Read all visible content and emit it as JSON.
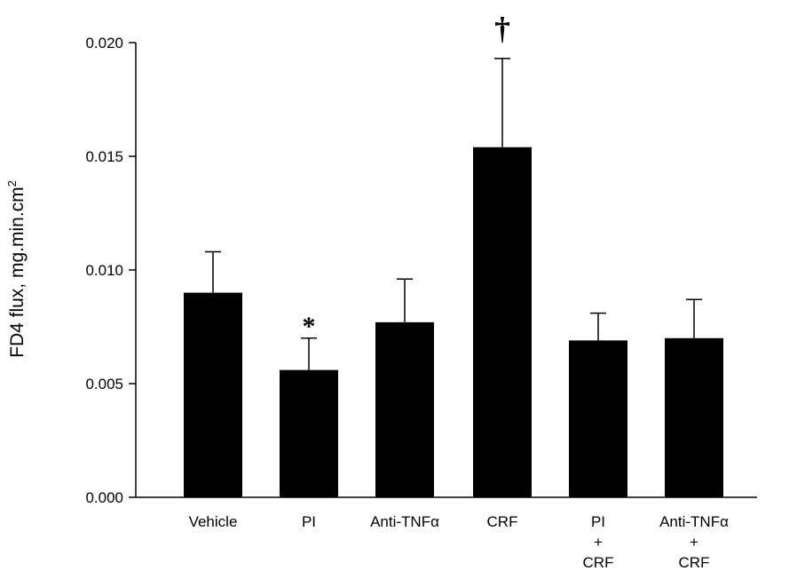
{
  "chart_data": {
    "type": "bar",
    "ylabel": "FD4 flux, mg.min.cm",
    "ylabel_sup": "2",
    "ylim": [
      0,
      0.02
    ],
    "yticks": [
      "0.000",
      "0.005",
      "0.010",
      "0.015",
      "0.020"
    ],
    "ytick_values": [
      0,
      0.005,
      0.01,
      0.015,
      0.02
    ],
    "categories": [
      {
        "lines": [
          "Vehicle"
        ]
      },
      {
        "lines": [
          "PI"
        ]
      },
      {
        "lines": [
          "Anti-TNFα"
        ]
      },
      {
        "lines": [
          "CRF"
        ]
      },
      {
        "lines": [
          "PI",
          "+",
          "CRF"
        ]
      },
      {
        "lines": [
          "Anti-TNFα",
          "+",
          "CRF"
        ]
      }
    ],
    "values": [
      0.009,
      0.0056,
      0.0077,
      0.0154,
      0.0069,
      0.007
    ],
    "error_upper": [
      0.0108,
      0.007,
      0.0096,
      0.0193,
      0.0081,
      0.0087
    ],
    "annotations": [
      {
        "category_index": 1,
        "text": "*"
      },
      {
        "category_index": 3,
        "text": "†"
      }
    ],
    "bar_color": "#000000"
  }
}
